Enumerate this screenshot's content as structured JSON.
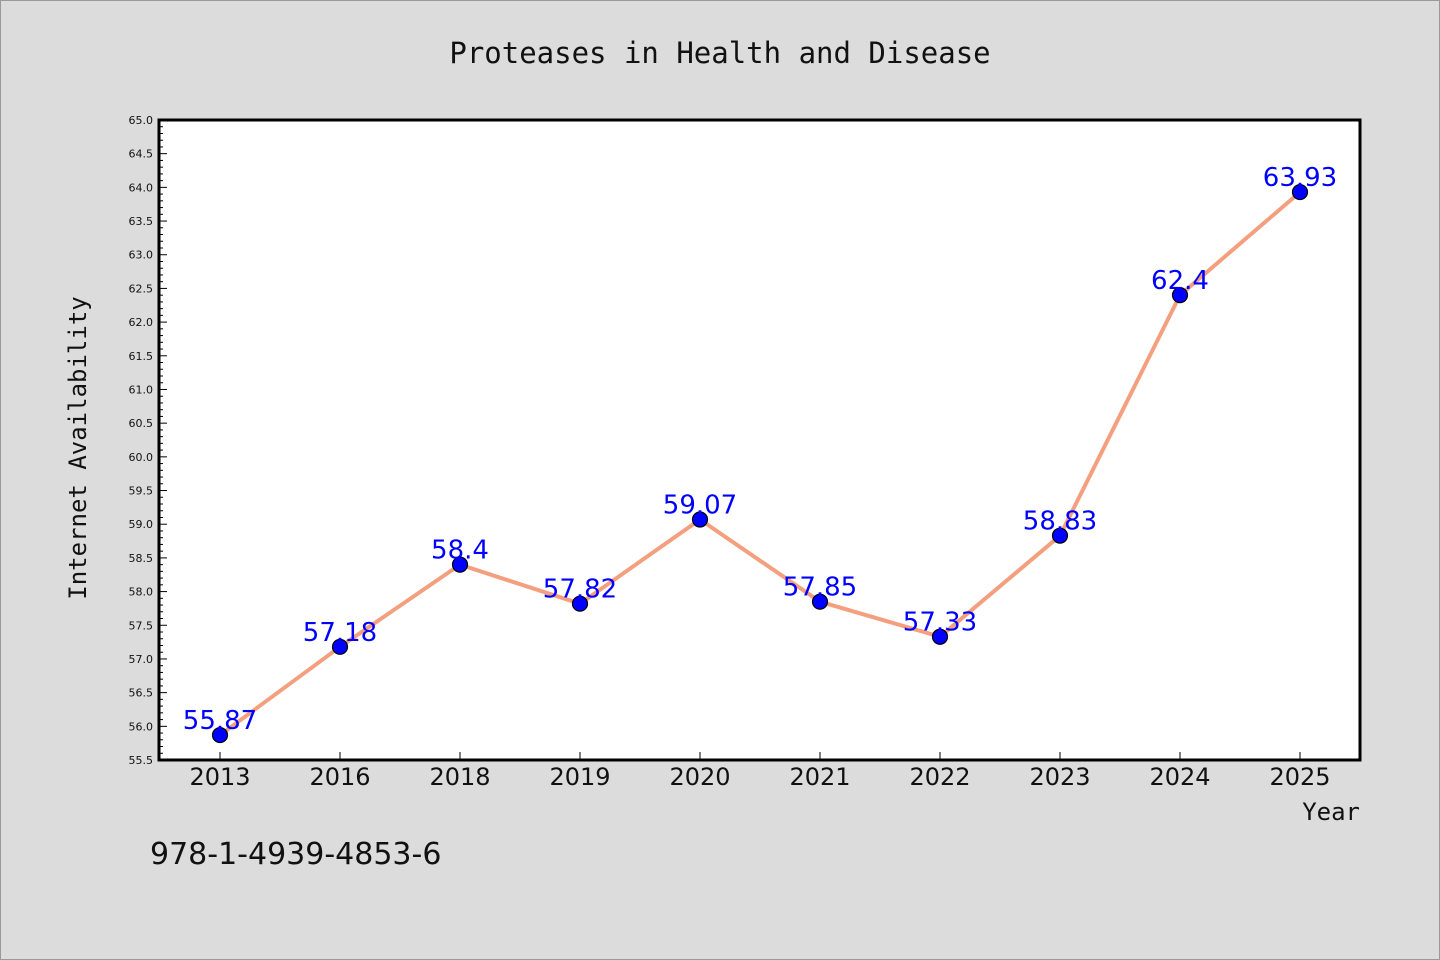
{
  "chart_data": {
    "type": "line",
    "title": "Proteases in Health and Disease",
    "xlabel": "Year",
    "ylabel": "Internet Availability",
    "categories": [
      "2013",
      "2016",
      "2018",
      "2019",
      "2020",
      "2021",
      "2022",
      "2023",
      "2024",
      "2025"
    ],
    "series": [
      {
        "values": [
          55.87,
          57.18,
          58.4,
          57.82,
          59.07,
          57.85,
          57.33,
          58.83,
          62.4,
          63.93
        ],
        "labels": [
          "55.87",
          "57.18",
          "58.4",
          "57.82",
          "59.07",
          "57.85",
          "57.33",
          "58.83",
          "62.4",
          "63.93"
        ]
      }
    ],
    "ylim": [
      55.5,
      65.0
    ],
    "yticks": [
      "55.5",
      "56.0",
      "56.5",
      "57.0",
      "57.5",
      "58.0",
      "58.5",
      "59.0",
      "59.5",
      "60.0",
      "60.5",
      "61.0",
      "61.5",
      "62.0",
      "62.5",
      "63.0",
      "63.5",
      "64.0",
      "64.5",
      "65.0"
    ],
    "grid": false,
    "line_color": "#f4a07f",
    "marker_color": "#0000ff",
    "label_color": "#0000ff"
  },
  "footer_text": "978-1-4939-4853-6"
}
